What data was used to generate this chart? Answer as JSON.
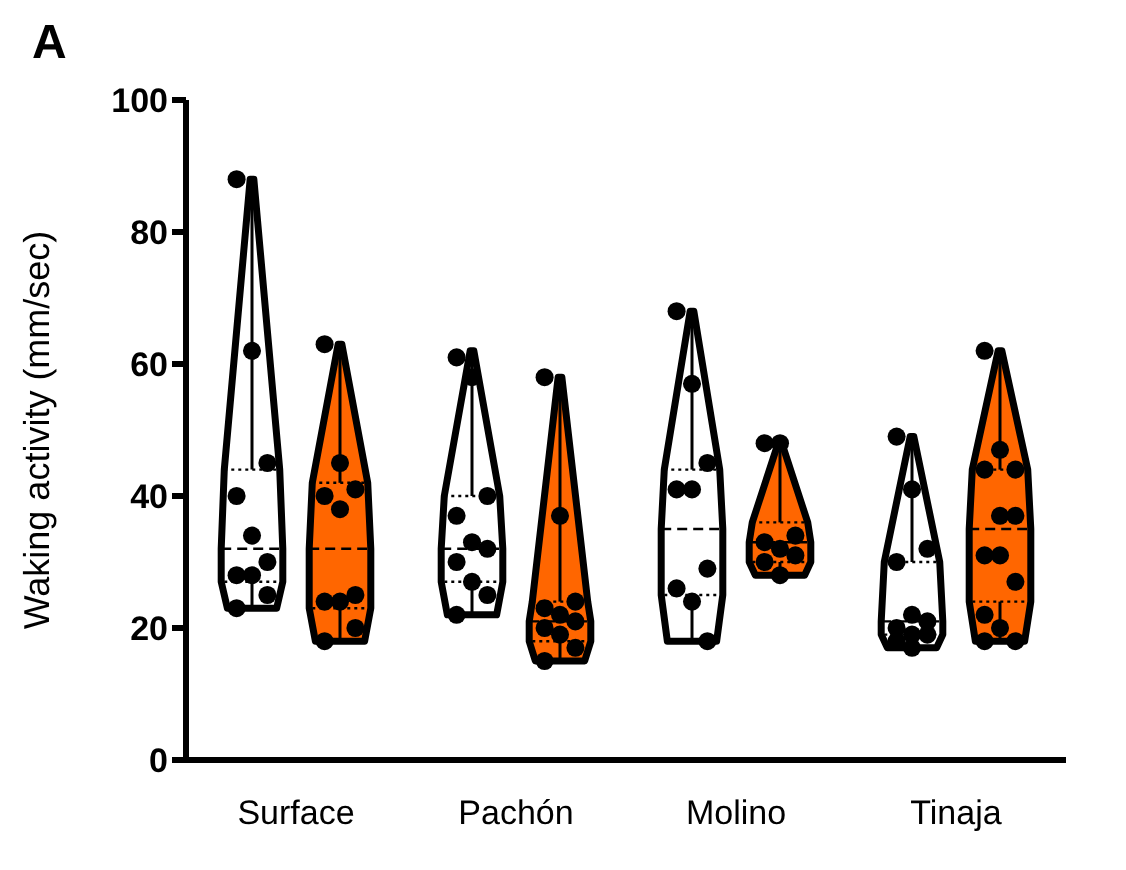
{
  "chart_data": {
    "type": "box",
    "title": "A",
    "ylabel": "Waking activity (mm/sec)",
    "categories": [
      "Surface",
      "Pachón",
      "Molino",
      "Tinaja"
    ],
    "ylim": [
      0,
      100
    ],
    "yticks": [
      0,
      20,
      40,
      60,
      80,
      100
    ],
    "series": [
      {
        "color": "#ffffff",
        "boxes": [
          {
            "low": 23,
            "q1": 27,
            "median": 32,
            "q3": 44,
            "high": 88
          },
          {
            "low": 22,
            "q1": 27,
            "median": 32,
            "q3": 40,
            "high": 62
          },
          {
            "low": 18,
            "q1": 25,
            "median": 35,
            "q3": 44,
            "high": 68
          },
          {
            "low": 17,
            "q1": 19,
            "median": 21,
            "q3": 30,
            "high": 49
          }
        ]
      },
      {
        "color": "#ff6600",
        "boxes": [
          {
            "low": 18,
            "q1": 23,
            "median": 32,
            "q3": 42,
            "high": 63
          },
          {
            "low": 15,
            "q1": 18,
            "median": 21,
            "q3": 24,
            "high": 58
          },
          {
            "low": 28,
            "q1": 30,
            "median": 33,
            "q3": 36,
            "high": 48
          },
          {
            "low": 18,
            "q1": 24,
            "median": 35,
            "q3": 44,
            "high": 62
          }
        ]
      },
      {
        "type": "scatter",
        "color": "#000000",
        "x": [
          "Surface",
          "Surface",
          "Surface",
          "Surface",
          "Surface",
          "Surface",
          "Surface",
          "Surface",
          "Surface",
          "Surface",
          "Pachón",
          "Pachón",
          "Pachón",
          "Pachón",
          "Pachón",
          "Pachón",
          "Pachón",
          "Pachón",
          "Pachón",
          "Pachón",
          "Molino",
          "Molino",
          "Molino",
          "Molino",
          "Molino",
          "Molino",
          "Molino",
          "Molino",
          "Molino",
          "Tinaja",
          "Tinaja",
          "Tinaja",
          "Tinaja",
          "Tinaja",
          "Tinaja",
          "Tinaja",
          "Tinaja",
          "Tinaja",
          "Tinaja",
          "Tinaja"
        ],
        "values": [
          88,
          62,
          45,
          40,
          34,
          30,
          28,
          28,
          25,
          23,
          61,
          58,
          40,
          37,
          33,
          32,
          30,
          27,
          25,
          22,
          68,
          57,
          45,
          41,
          41,
          29,
          26,
          24,
          18,
          49,
          41,
          32,
          30,
          22,
          21,
          20,
          19,
          19,
          18,
          17
        ]
      },
      {
        "type": "scatter",
        "color": "#000000",
        "x": [
          "Surface",
          "Surface",
          "Surface",
          "Surface",
          "Surface",
          "Surface",
          "Surface",
          "Surface",
          "Surface",
          "Surface",
          "Pachón",
          "Pachón",
          "Pachón",
          "Pachón",
          "Pachón",
          "Pachón",
          "Pachón",
          "Pachón",
          "Pachón",
          "Pachón",
          "Molino",
          "Molino",
          "Molino",
          "Molino",
          "Molino",
          "Molino",
          "Molino",
          "Molino",
          "Tinaja",
          "Tinaja",
          "Tinaja",
          "Tinaja",
          "Tinaja",
          "Tinaja",
          "Tinaja",
          "Tinaja",
          "Tinaja",
          "Tinaja",
          "Tinaja",
          "Tinaja",
          "Tinaja"
        ],
        "values": [
          63,
          45,
          41,
          40,
          38,
          25,
          24,
          24,
          20,
          18,
          58,
          37,
          24,
          23,
          22,
          21,
          20,
          19,
          17,
          15,
          48,
          48,
          34,
          33,
          32,
          31,
          30,
          28,
          62,
          47,
          44,
          44,
          37,
          37,
          31,
          31,
          27,
          22,
          20,
          18,
          18
        ]
      }
    ]
  }
}
